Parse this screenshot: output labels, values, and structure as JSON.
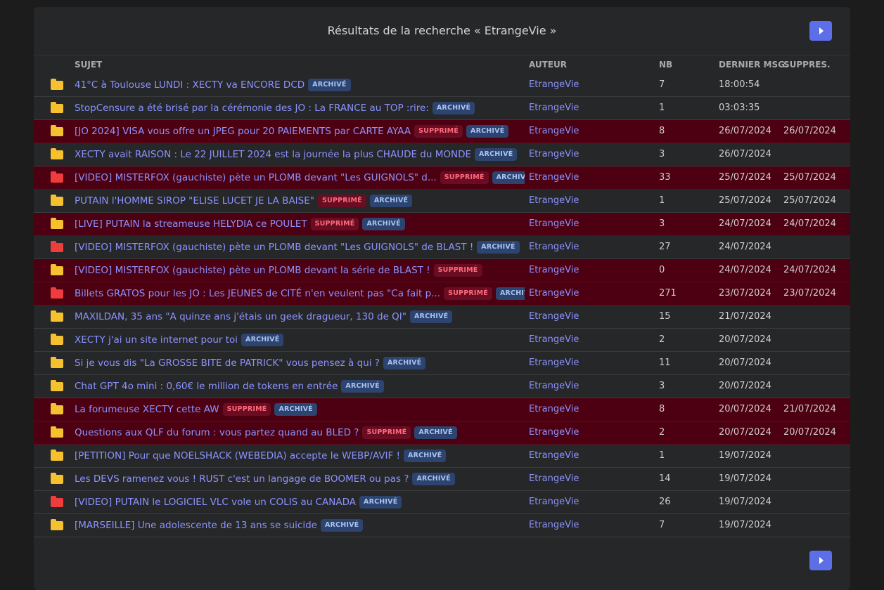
{
  "title": "Résultats de la recherche « EtrangeVie »",
  "columns": {
    "subject": "SUJET",
    "author": "AUTEUR",
    "nb": "NB",
    "last": "DERNIER MSG.",
    "supp": "SUPPRES."
  },
  "badges": {
    "archive": "ARCHIVÉ",
    "deleted": "SUPPRIMÉ"
  },
  "colors": {
    "accent": "#5d6fe8",
    "link": "#8b93ff",
    "deleted_row": "#4d0011",
    "folder_yellow": "#f5c12e",
    "folder_red": "#ef3d3d"
  },
  "rows": [
    {
      "subject": "41°C à Toulouse LUNDI : XECTY va ENCORE DCD",
      "folder": "yellow",
      "deleted": false,
      "archived": true,
      "author": "EtrangeVie",
      "nb": "7",
      "last": "18:00:54",
      "supp": ""
    },
    {
      "subject": "StopCensure a été brisé par la cérémonie des JO : La FRANCE au TOP :rire:",
      "folder": "yellow",
      "deleted": false,
      "archived": true,
      "author": "EtrangeVie",
      "nb": "1",
      "last": "03:03:35",
      "supp": ""
    },
    {
      "subject": "[JO 2024] VISA vous offre un JPEG pour 20 PAIEMENTS par CARTE AYAA",
      "folder": "yellow",
      "deleted": true,
      "archived": true,
      "author": "EtrangeVie",
      "nb": "8",
      "last": "26/07/2024",
      "supp": "26/07/2024"
    },
    {
      "subject": "XECTY avait RAISON : Le 22 JUILLET 2024 est la journée la plus CHAUDE du MONDE",
      "folder": "yellow",
      "deleted": false,
      "archived": true,
      "author": "EtrangeVie",
      "nb": "3",
      "last": "26/07/2024",
      "supp": ""
    },
    {
      "subject": "[VIDEO] MISTERFOX (gauchiste) pète un PLOMB devant \"Les GUIGNOLS\" d...",
      "folder": "red",
      "deleted": true,
      "archived": true,
      "author": "EtrangeVie",
      "nb": "33",
      "last": "25/07/2024",
      "supp": "25/07/2024"
    },
    {
      "subject": "PUTAIN l'HOMME SIROP \"ELISE LUCET JE LA BAISE\"",
      "folder": "yellow",
      "deleted": true,
      "archived": true,
      "author": "EtrangeVie",
      "nb": "1",
      "last": "25/07/2024",
      "supp": "25/07/2024",
      "plain_bg": true
    },
    {
      "subject": "[LIVE] PUTAIN la streameuse HELYDIA ce POULET",
      "folder": "yellow",
      "deleted": true,
      "archived": true,
      "author": "EtrangeVie",
      "nb": "3",
      "last": "24/07/2024",
      "supp": "24/07/2024"
    },
    {
      "subject": "[VIDEO] MISTERFOX (gauchiste) pète un PLOMB devant \"Les GUIGNOLS\" de BLAST !",
      "folder": "red",
      "deleted": false,
      "archived": true,
      "author": "EtrangeVie",
      "nb": "27",
      "last": "24/07/2024",
      "supp": ""
    },
    {
      "subject": "[VIDEO] MISTERFOX (gauchiste) pète un PLOMB devant la série de BLAST !",
      "folder": "yellow",
      "deleted": true,
      "archived": false,
      "author": "EtrangeVie",
      "nb": "0",
      "last": "24/07/2024",
      "supp": "24/07/2024"
    },
    {
      "subject": "Billets GRATOS pour les JO : Les JEUNES de CITÉ n'en veulent pas \"Ca fait p...",
      "folder": "red",
      "deleted": true,
      "archived": true,
      "author": "EtrangeVie",
      "nb": "271",
      "last": "23/07/2024",
      "supp": "23/07/2024"
    },
    {
      "subject": "MAXILDAN, 35 ans \"A quinze ans j'étais un geek dragueur, 130 de QI\"",
      "folder": "yellow",
      "deleted": false,
      "archived": true,
      "author": "EtrangeVie",
      "nb": "15",
      "last": "21/07/2024",
      "supp": ""
    },
    {
      "subject": "XECTY j'ai un site internet pour toi",
      "folder": "yellow",
      "deleted": false,
      "archived": true,
      "author": "EtrangeVie",
      "nb": "2",
      "last": "20/07/2024",
      "supp": ""
    },
    {
      "subject": "Si je vous dis \"La GROSSE BITE de PATRICK\" vous pensez à qui ?",
      "folder": "yellow",
      "deleted": false,
      "archived": true,
      "author": "EtrangeVie",
      "nb": "11",
      "last": "20/07/2024",
      "supp": ""
    },
    {
      "subject": "Chat GPT 4o mini : 0,60€ le million de tokens en entrée",
      "folder": "yellow",
      "deleted": false,
      "archived": true,
      "author": "EtrangeVie",
      "nb": "3",
      "last": "20/07/2024",
      "supp": ""
    },
    {
      "subject": "La forumeuse XECTY cette AW",
      "folder": "yellow",
      "deleted": true,
      "archived": true,
      "author": "EtrangeVie",
      "nb": "8",
      "last": "20/07/2024",
      "supp": "21/07/2024"
    },
    {
      "subject": "Questions aux QLF du forum : vous partez quand au BLED ?",
      "folder": "yellow",
      "deleted": true,
      "archived": true,
      "author": "EtrangeVie",
      "nb": "2",
      "last": "20/07/2024",
      "supp": "20/07/2024"
    },
    {
      "subject": "[PETITION] Pour que NOELSHACK (WEBEDIA) accepte le WEBP/AVIF !",
      "folder": "yellow",
      "deleted": false,
      "archived": true,
      "author": "EtrangeVie",
      "nb": "1",
      "last": "19/07/2024",
      "supp": ""
    },
    {
      "subject": "Les DEVS ramenez vous ! RUST c'est un langage de BOOMER ou pas ?",
      "folder": "yellow",
      "deleted": false,
      "archived": true,
      "author": "EtrangeVie",
      "nb": "14",
      "last": "19/07/2024",
      "supp": ""
    },
    {
      "subject": "[VIDEO] PUTAIN le LOGICIEL VLC vole un COLIS au CANADA",
      "folder": "red",
      "deleted": false,
      "archived": true,
      "author": "EtrangeVie",
      "nb": "26",
      "last": "19/07/2024",
      "supp": ""
    },
    {
      "subject": "[MARSEILLE] Une adolescente de 13 ans se suicide",
      "folder": "yellow",
      "deleted": false,
      "archived": true,
      "author": "EtrangeVie",
      "nb": "7",
      "last": "19/07/2024",
      "supp": ""
    }
  ]
}
